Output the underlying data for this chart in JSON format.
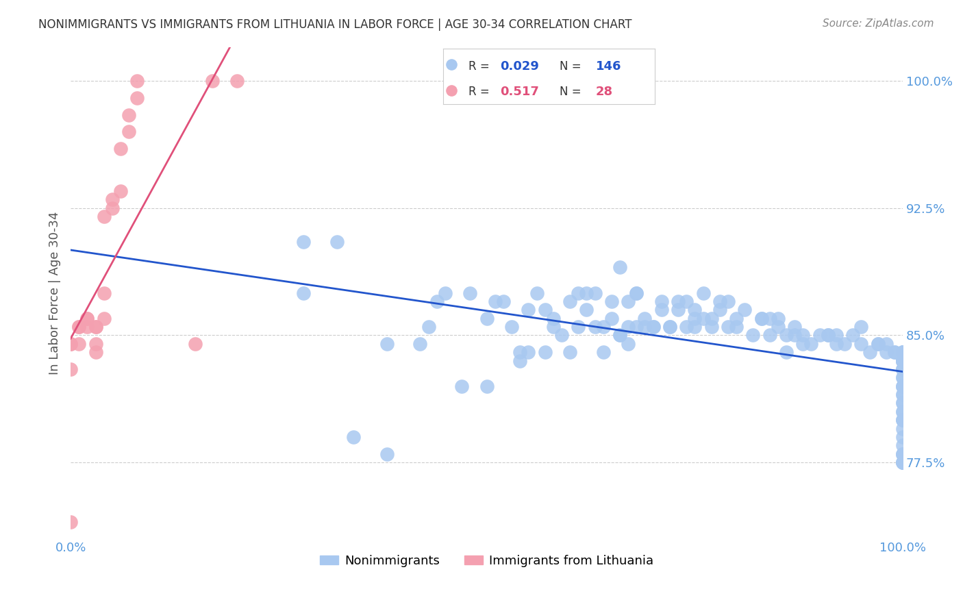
{
  "title": "NONIMMIGRANTS VS IMMIGRANTS FROM LITHUANIA IN LABOR FORCE | AGE 30-34 CORRELATION CHART",
  "source": "Source: ZipAtlas.com",
  "xlabel": "",
  "ylabel": "In Labor Force | Age 30-34",
  "xlim": [
    0.0,
    1.0
  ],
  "ylim": [
    0.73,
    1.02
  ],
  "yticks": [
    0.775,
    0.85,
    0.925,
    1.0
  ],
  "ytick_labels": [
    "77.5%",
    "85.0%",
    "92.5%",
    "100.0%"
  ],
  "xtick_labels": [
    "0.0%",
    "100.0%"
  ],
  "xticks": [
    0.0,
    1.0
  ],
  "blue_R": 0.029,
  "blue_N": 146,
  "pink_R": 0.517,
  "pink_N": 28,
  "blue_color": "#a8c8f0",
  "pink_color": "#f4a0b0",
  "blue_line_color": "#2255cc",
  "pink_line_color": "#e0507a",
  "title_color": "#333333",
  "axis_color": "#5599dd",
  "grid_color": "#cccccc",
  "background_color": "#ffffff",
  "blue_scatter_x": [
    0.28,
    0.32,
    0.28,
    0.34,
    0.38,
    0.42,
    0.38,
    0.43,
    0.44,
    0.45,
    0.47,
    0.48,
    0.5,
    0.5,
    0.51,
    0.52,
    0.53,
    0.54,
    0.54,
    0.55,
    0.55,
    0.56,
    0.57,
    0.57,
    0.58,
    0.58,
    0.59,
    0.6,
    0.6,
    0.61,
    0.61,
    0.62,
    0.62,
    0.63,
    0.63,
    0.64,
    0.64,
    0.65,
    0.65,
    0.66,
    0.66,
    0.66,
    0.67,
    0.67,
    0.67,
    0.68,
    0.68,
    0.68,
    0.69,
    0.69,
    0.7,
    0.7,
    0.71,
    0.71,
    0.72,
    0.72,
    0.73,
    0.73,
    0.74,
    0.74,
    0.75,
    0.75,
    0.75,
    0.76,
    0.76,
    0.77,
    0.77,
    0.78,
    0.78,
    0.79,
    0.79,
    0.8,
    0.8,
    0.81,
    0.82,
    0.83,
    0.83,
    0.84,
    0.84,
    0.85,
    0.85,
    0.86,
    0.86,
    0.87,
    0.87,
    0.88,
    0.88,
    0.89,
    0.9,
    0.91,
    0.91,
    0.92,
    0.92,
    0.93,
    0.94,
    0.95,
    0.95,
    0.96,
    0.97,
    0.97,
    0.98,
    0.98,
    0.99,
    0.99,
    1.0,
    1.0,
    1.0,
    1.0,
    1.0,
    1.0,
    1.0,
    1.0,
    1.0,
    1.0,
    1.0,
    1.0,
    1.0,
    1.0,
    1.0,
    1.0,
    1.0,
    1.0,
    1.0,
    1.0,
    1.0,
    1.0,
    1.0,
    1.0,
    1.0,
    1.0,
    1.0,
    1.0,
    1.0,
    1.0,
    1.0,
    1.0,
    1.0,
    1.0,
    1.0,
    1.0,
    1.0,
    1.0
  ],
  "blue_scatter_y": [
    0.905,
    0.905,
    0.875,
    0.79,
    0.78,
    0.845,
    0.845,
    0.855,
    0.87,
    0.875,
    0.82,
    0.875,
    0.86,
    0.82,
    0.87,
    0.87,
    0.855,
    0.835,
    0.84,
    0.865,
    0.84,
    0.875,
    0.865,
    0.84,
    0.86,
    0.855,
    0.85,
    0.87,
    0.84,
    0.875,
    0.855,
    0.875,
    0.865,
    0.855,
    0.875,
    0.855,
    0.84,
    0.86,
    0.87,
    0.89,
    0.85,
    0.85,
    0.855,
    0.87,
    0.845,
    0.855,
    0.875,
    0.875,
    0.855,
    0.86,
    0.855,
    0.855,
    0.865,
    0.87,
    0.855,
    0.855,
    0.87,
    0.865,
    0.855,
    0.87,
    0.86,
    0.865,
    0.855,
    0.86,
    0.875,
    0.86,
    0.855,
    0.87,
    0.865,
    0.855,
    0.87,
    0.86,
    0.855,
    0.865,
    0.85,
    0.86,
    0.86,
    0.85,
    0.86,
    0.86,
    0.855,
    0.84,
    0.85,
    0.85,
    0.855,
    0.845,
    0.85,
    0.845,
    0.85,
    0.85,
    0.85,
    0.85,
    0.845,
    0.845,
    0.85,
    0.845,
    0.855,
    0.84,
    0.845,
    0.845,
    0.845,
    0.84,
    0.84,
    0.84,
    0.84,
    0.835,
    0.84,
    0.835,
    0.84,
    0.835,
    0.835,
    0.84,
    0.835,
    0.835,
    0.83,
    0.83,
    0.83,
    0.83,
    0.825,
    0.825,
    0.82,
    0.82,
    0.82,
    0.815,
    0.815,
    0.81,
    0.81,
    0.805,
    0.805,
    0.8,
    0.8,
    0.8,
    0.795,
    0.79,
    0.785,
    0.78,
    0.775,
    0.775,
    0.78,
    0.78,
    0.775,
    0.775
  ],
  "pink_scatter_x": [
    0.0,
    0.0,
    0.0,
    0.0,
    0.01,
    0.01,
    0.01,
    0.02,
    0.02,
    0.02,
    0.03,
    0.03,
    0.03,
    0.03,
    0.04,
    0.04,
    0.04,
    0.05,
    0.05,
    0.06,
    0.06,
    0.07,
    0.07,
    0.08,
    0.08,
    0.15,
    0.17,
    0.2
  ],
  "pink_scatter_y": [
    0.74,
    0.83,
    0.845,
    0.845,
    0.845,
    0.855,
    0.855,
    0.855,
    0.86,
    0.86,
    0.84,
    0.845,
    0.855,
    0.855,
    0.86,
    0.875,
    0.92,
    0.925,
    0.93,
    0.935,
    0.96,
    0.97,
    0.98,
    0.99,
    1.0,
    0.845,
    1.0,
    1.0
  ]
}
